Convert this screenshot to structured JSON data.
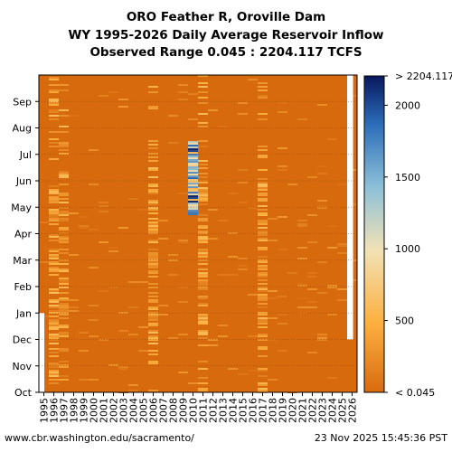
{
  "chart_data": {
    "type": "heatmap",
    "title_lines": [
      "ORO Feather R, Oroville Dam",
      "WY 1995-2026 Daily Average Reservoir Inflow",
      "Observed Range 0.045 : 2204.117 TCFS"
    ],
    "x_ticks": [
      "1995",
      "1996",
      "1997",
      "1998",
      "1999",
      "2000",
      "2001",
      "2002",
      "2003",
      "2004",
      "2005",
      "2006",
      "2007",
      "2008",
      "2009",
      "2010",
      "2011",
      "2012",
      "2013",
      "2014",
      "2015",
      "2016",
      "2017",
      "2018",
      "2019",
      "2020",
      "2021",
      "2022",
      "2023",
      "2024",
      "2025",
      "2026"
    ],
    "y_ticks": [
      "Oct",
      "Nov",
      "Dec",
      "Jan",
      "Feb",
      "Mar",
      "Apr",
      "May",
      "Jun",
      "Jul",
      "Aug",
      "Sep"
    ],
    "colorbar": {
      "ticks": [
        {
          "label": "< 0.045",
          "value": 0
        },
        {
          "label": "500",
          "value": 500
        },
        {
          "label": "1000",
          "value": 1000
        },
        {
          "label": "1500",
          "value": 1500
        },
        {
          "label": "2000",
          "value": 2000
        },
        {
          "label": "> 2204.117",
          "value": 2204.117
        }
      ],
      "range": [
        0.045,
        2204.117
      ]
    },
    "base_color": "#d86a0e",
    "high_flow_years": [
      "1996",
      "1997",
      "2006",
      "2011",
      "2017"
    ],
    "peak_event": {
      "water_year": "2010",
      "months": [
        "May",
        "Jun",
        "Jul"
      ]
    },
    "missing_data": [
      {
        "water_year": "1995",
        "months": [
          "Oct",
          "Nov",
          "Dec"
        ]
      },
      {
        "water_year": "2026",
        "months": [
          "Dec",
          "Jan",
          "Feb",
          "Mar",
          "Apr",
          "May",
          "Jun",
          "Jul",
          "Aug",
          "Sep"
        ]
      }
    ]
  },
  "footer": {
    "left": "www.cbr.washington.edu/sacramento/",
    "right": "23 Nov 2025 15:45:36 PST"
  }
}
